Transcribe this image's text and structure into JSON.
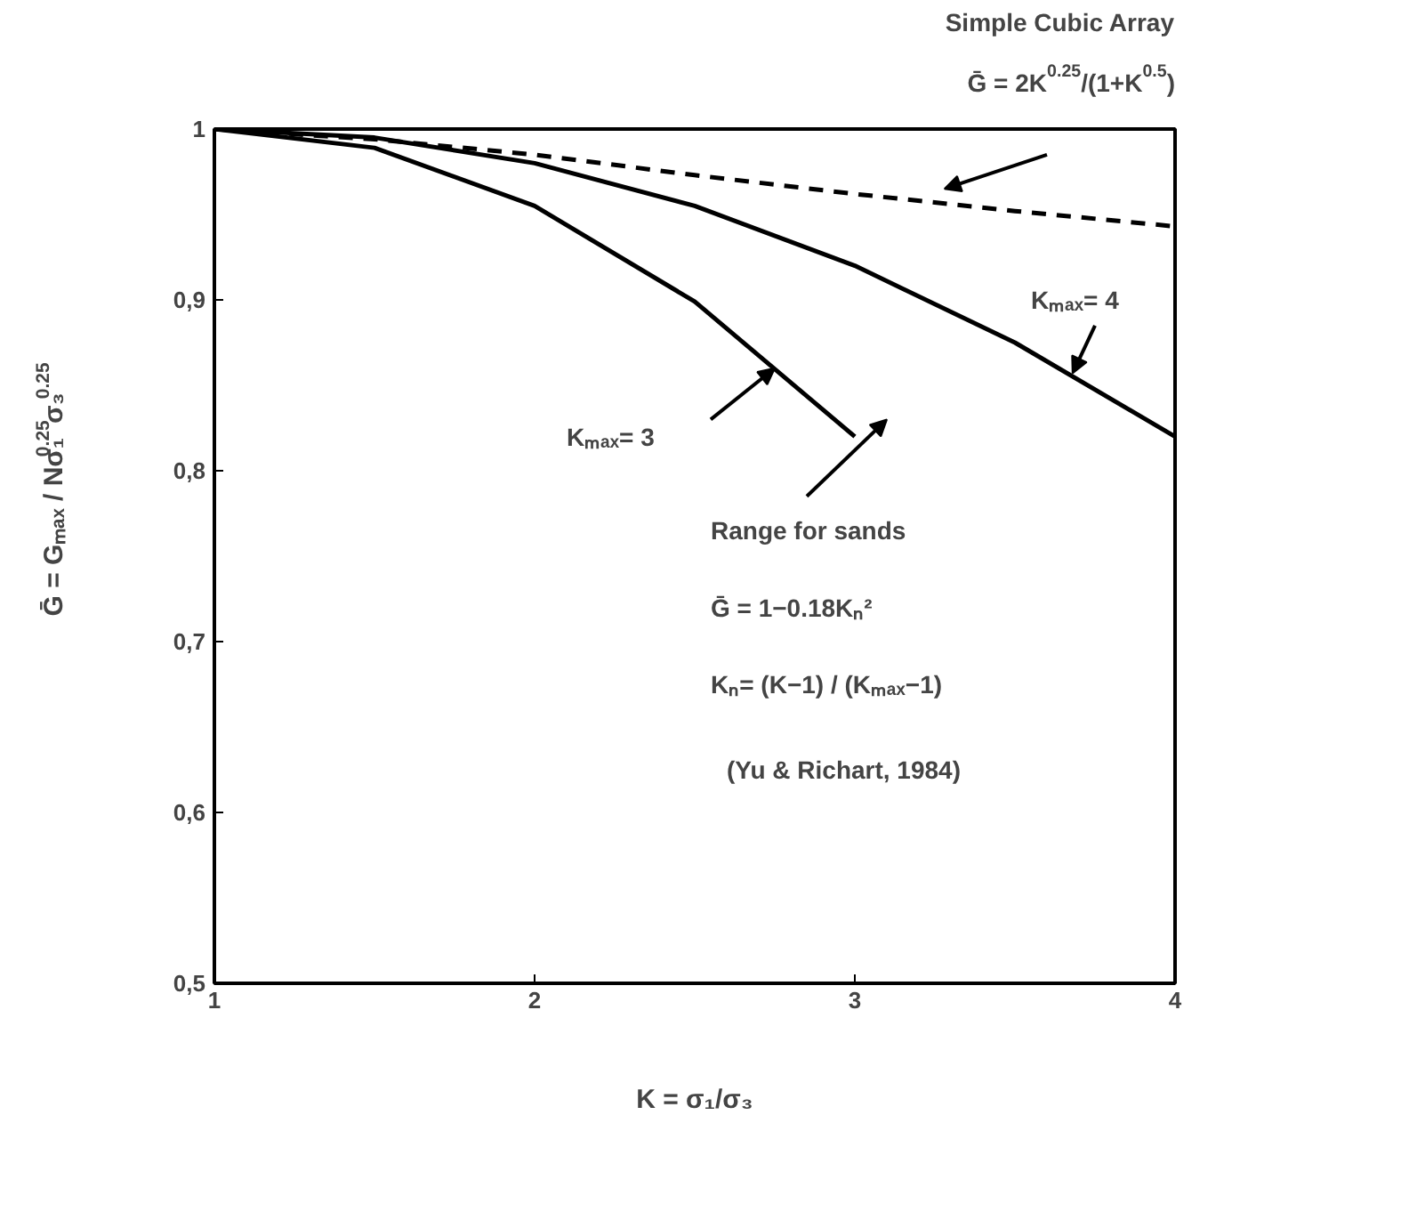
{
  "chart_data": {
    "type": "line",
    "title": "Simple Cubic Array",
    "subtitle": "Ḡ = 2K$^{0.25}$/(1+K$^{0.5}$)",
    "xlabel": "K = σ₁/σ₃",
    "ylabel": "Ḡ = Gₘₐₓ / Nσ₁$^{0.25}$σ₃$^{0.25}$",
    "series": [
      {
        "color": "#000000",
        "line_style": "dashed",
        "x": [
          1,
          1.5,
          2,
          2.5,
          3,
          3.5,
          4
        ],
        "values": [
          1,
          0.994,
          0.985,
          0.973,
          0.962,
          0.952,
          0.943
        ]
      },
      {
        "color": "#000000",
        "line_style": "solid",
        "x": [
          1,
          1.5,
          2,
          2.5,
          3,
          3.5,
          4
        ],
        "values": [
          1,
          0.995,
          0.98,
          0.955,
          0.92,
          0.875,
          0.82
        ]
      },
      {
        "color": "#000000",
        "line_style": "solid",
        "x": [
          1,
          1.5,
          2,
          2.5,
          3
        ],
        "values": [
          1,
          0.989,
          0.955,
          0.899,
          0.82
        ]
      }
    ],
    "annotations": [
      {
        "text": "Kₘₐₓ= 4",
        "x": 3.68,
        "y": 0.857
      },
      "Kₘₐₓ= 3",
      "Range for sands",
      "Ḡ = 1−0.18Kₙ²",
      "Kₙ= (K−1) / (Kₘₐₓ−1)",
      "(Yu & Richart, 1984)"
    ],
    "xlim": [
      1,
      4
    ],
    "ylim": [
      0.5,
      1
    ],
    "xticks": [
      1,
      2,
      3,
      4
    ],
    "yticks": [
      {
        "value": 0.5,
        "label": "0,5"
      },
      {
        "value": 0.6,
        "label": "0,6"
      },
      {
        "value": 0.7,
        "label": "0,7"
      },
      {
        "value": 0.8,
        "label": "0,8"
      },
      {
        "value": 0.9,
        "label": "0,9"
      },
      1
    ],
    "grid": false,
    "marker": "none"
  }
}
